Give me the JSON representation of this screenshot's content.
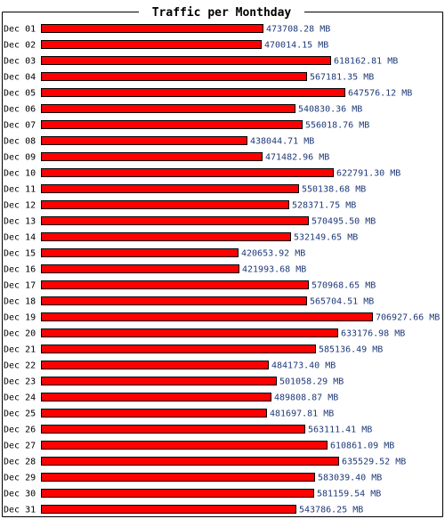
{
  "colors": {
    "bar_fill": "#ff0000",
    "bar_stroke": "#000000",
    "value_text": "#1e3a78",
    "frame": "#000000",
    "background": "#ffffff"
  },
  "chart_data": {
    "type": "bar",
    "orientation": "horizontal",
    "title": "Traffic per Monthday",
    "unit": "MB",
    "grid": false,
    "legend": "none",
    "categories": [
      "Dec 01",
      "Dec 02",
      "Dec 03",
      "Dec 04",
      "Dec 05",
      "Dec 06",
      "Dec 07",
      "Dec 08",
      "Dec 09",
      "Dec 10",
      "Dec 11",
      "Dec 12",
      "Dec 13",
      "Dec 14",
      "Dec 15",
      "Dec 16",
      "Dec 17",
      "Dec 18",
      "Dec 19",
      "Dec 20",
      "Dec 21",
      "Dec 22",
      "Dec 23",
      "Dec 24",
      "Dec 25",
      "Dec 26",
      "Dec 27",
      "Dec 28",
      "Dec 29",
      "Dec 30",
      "Dec 31"
    ],
    "values": [
      473708.28,
      470014.15,
      618162.81,
      567181.35,
      647576.12,
      540830.36,
      556018.76,
      438044.71,
      471482.96,
      622791.3,
      550138.68,
      528371.75,
      570495.5,
      532149.65,
      420653.92,
      421993.68,
      570968.65,
      565704.51,
      706927.66,
      633176.98,
      585136.49,
      484173.4,
      501058.29,
      489808.87,
      481697.81,
      563111.41,
      610861.09,
      635529.52,
      583039.4,
      581159.54,
      543786.25
    ],
    "value_labels": [
      "473708.28 MB",
      "470014.15 MB",
      "618162.81 MB",
      "567181.35 MB",
      "647576.12 MB",
      "540830.36 MB",
      "556018.76 MB",
      "438044.71 MB",
      "471482.96 MB",
      "622791.30 MB",
      "550138.68 MB",
      "528371.75 MB",
      "570495.50 MB",
      "532149.65 MB",
      "420653.92 MB",
      "421993.68 MB",
      "570968.65 MB",
      "565704.51 MB",
      "706927.66 MB",
      "633176.98 MB",
      "585136.49 MB",
      "484173.40 MB",
      "501058.29 MB",
      "489808.87 MB",
      "481697.81 MB",
      "563111.41 MB",
      "610861.09 MB",
      "635529.52 MB",
      "583039.40 MB",
      "581159.54 MB",
      "543786.25 MB"
    ],
    "xlim": [
      0,
      706927.66
    ]
  }
}
